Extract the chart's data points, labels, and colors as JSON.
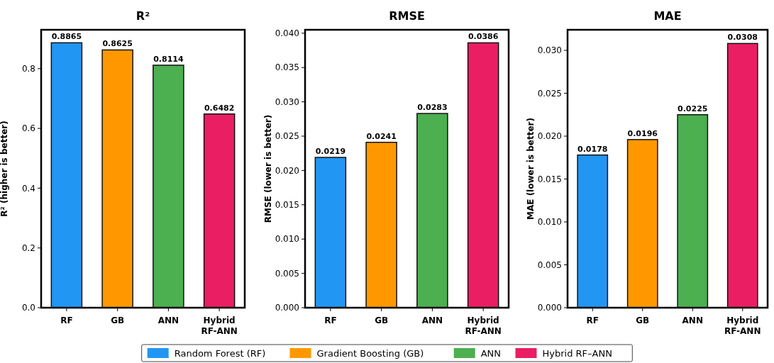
{
  "chart_data": [
    {
      "type": "bar",
      "title": "R²",
      "ylabel": "R² (higher is better)",
      "categories": [
        "RF",
        "GB",
        "ANN",
        "Hybrid\nRF-ANN"
      ],
      "ylim": [
        0,
        0.93
      ],
      "yticks": [
        {
          "value": 0,
          "label": "0.0"
        },
        {
          "value": 0.2,
          "label": "0.2"
        },
        {
          "value": 0.4,
          "label": "0.4"
        },
        {
          "value": 0.6,
          "label": "0.6"
        },
        {
          "value": 0.8,
          "label": "0.8"
        }
      ],
      "data_labels": true,
      "legend": "bottom",
      "series": [
        {
          "name": "Random Forest (RF)",
          "color": "#2196f3",
          "values": [
            0.8865,
            null,
            null,
            null
          ]
        },
        {
          "name": "Gradient Boosting (GB)",
          "color": "#ff9800",
          "values": [
            null,
            0.8625,
            null,
            null
          ]
        },
        {
          "name": "ANN",
          "color": "#4caf50",
          "values": [
            null,
            null,
            0.8114,
            null
          ]
        },
        {
          "name": "Hybrid RF–ANN",
          "color": "#e91e63",
          "values": [
            null,
            null,
            null,
            0.6482
          ]
        }
      ]
    },
    {
      "type": "bar",
      "title": "RMSE",
      "ylabel": "RMSE (lower is better)",
      "categories": [
        "RF",
        "GB",
        "ANN",
        "Hybrid\nRF-ANN"
      ],
      "ylim": [
        0,
        0.0405
      ],
      "yticks": [
        {
          "value": 0,
          "label": "0.000"
        },
        {
          "value": 0.005,
          "label": "0.005"
        },
        {
          "value": 0.01,
          "label": "0.010"
        },
        {
          "value": 0.015,
          "label": "0.015"
        },
        {
          "value": 0.02,
          "label": "0.020"
        },
        {
          "value": 0.025,
          "label": "0.025"
        },
        {
          "value": 0.03,
          "label": "0.030"
        },
        {
          "value": 0.035,
          "label": "0.035"
        },
        {
          "value": 0.04,
          "label": "0.040"
        }
      ],
      "data_labels": true,
      "series": [
        {
          "color": "#2196f3",
          "values": [
            0.0219,
            null,
            null,
            null
          ]
        },
        {
          "color": "#ff9800",
          "values": [
            null,
            0.0241,
            null,
            null
          ]
        },
        {
          "color": "#4caf50",
          "values": [
            null,
            null,
            0.0283,
            null
          ]
        },
        {
          "color": "#e91e63",
          "values": [
            null,
            null,
            null,
            0.0386
          ]
        }
      ]
    },
    {
      "type": "bar",
      "title": "MAE",
      "ylabel": "MAE (lower is better)",
      "categories": [
        "RF",
        "GB",
        "ANN",
        "Hybrid\nRF-ANN"
      ],
      "ylim": [
        0,
        0.0324
      ],
      "yticks": [
        {
          "value": 0,
          "label": "0.000"
        },
        {
          "value": 0.005,
          "label": "0.005"
        },
        {
          "value": 0.01,
          "label": "0.010"
        },
        {
          "value": 0.015,
          "label": "0.015"
        },
        {
          "value": 0.02,
          "label": "0.020"
        },
        {
          "value": 0.025,
          "label": "0.025"
        },
        {
          "value": 0.03,
          "label": "0.030"
        }
      ],
      "data_labels": true,
      "series": [
        {
          "color": "#2196f3",
          "values": [
            0.0178,
            null,
            null,
            null
          ]
        },
        {
          "color": "#ff9800",
          "values": [
            null,
            0.0196,
            null,
            null
          ]
        },
        {
          "color": "#4caf50",
          "values": [
            null,
            null,
            0.0225,
            null
          ]
        },
        {
          "color": "#e91e63",
          "values": [
            null,
            null,
            null,
            0.0308
          ]
        }
      ]
    }
  ]
}
